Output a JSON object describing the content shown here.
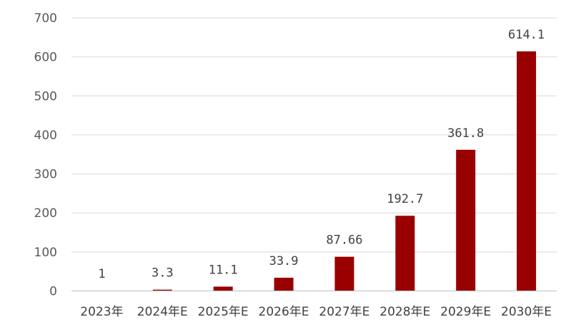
{
  "chart_data": {
    "type": "bar",
    "categories": [
      "2023年",
      "2024年E",
      "2025年E",
      "2026年E",
      "2027年E",
      "2028年E",
      "2029年E",
      "2030年E"
    ],
    "values": [
      1,
      3.3,
      11.1,
      33.9,
      87.66,
      192.7,
      361.8,
      614.1
    ],
    "data_labels": [
      "1",
      "3.3",
      "11.1",
      "33.9",
      "87.66",
      "192.7",
      "361.8",
      "614.1"
    ],
    "yticks": [
      "0",
      "100",
      "200",
      "300",
      "400",
      "500",
      "600",
      "700"
    ],
    "ylim": [
      0,
      700
    ],
    "bar_color": "#990000",
    "grid": true,
    "legend": "none"
  }
}
